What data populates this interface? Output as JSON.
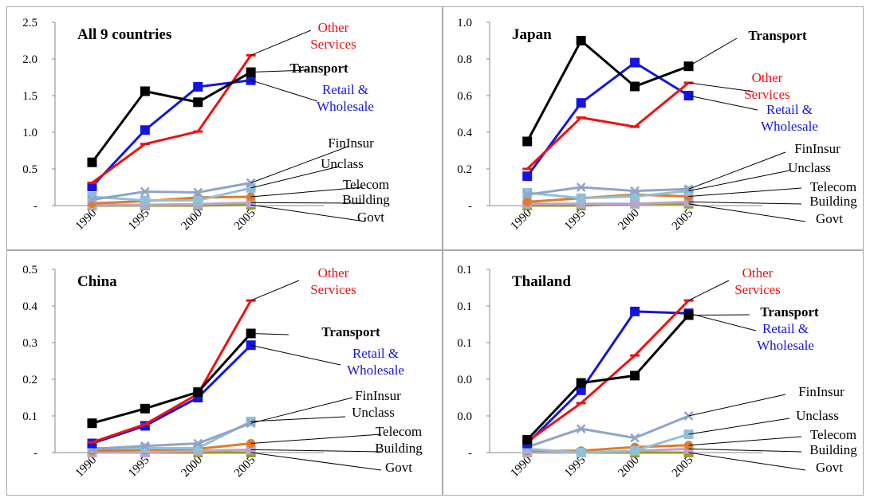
{
  "chart_data": [
    {
      "type": "line",
      "title": "All 9 countries",
      "x": [
        "1990",
        "1995",
        "2000",
        "2005"
      ],
      "yticks": [
        "-",
        "0.5",
        "1.0",
        "1.5",
        "2.0",
        "2.5"
      ],
      "ylim": [
        0,
        2.5
      ],
      "series": [
        {
          "name": "Govt",
          "color": "#9a9a28",
          "marker": "square",
          "values": [
            0.0,
            0.0,
            0.0,
            0.01
          ]
        },
        {
          "name": "Building",
          "color": "#b8a6c9",
          "marker": "square",
          "values": [
            0.01,
            0.01,
            0.02,
            0.04
          ]
        },
        {
          "name": "Telecom",
          "color": "#e07b28",
          "marker": "circle",
          "values": [
            0.03,
            0.06,
            0.11,
            0.12
          ]
        },
        {
          "name": "Unclass",
          "color": "#93bfd6",
          "marker": "square",
          "values": [
            0.12,
            0.07,
            0.07,
            0.24
          ]
        },
        {
          "name": "FinInsur",
          "color": "#8fa4c8",
          "marker": "cross",
          "values": [
            0.08,
            0.19,
            0.18,
            0.31
          ]
        },
        {
          "name": "Retail & Wholesale",
          "color": "#1515e0",
          "marker": "square",
          "values": [
            0.26,
            1.03,
            1.62,
            1.71
          ]
        },
        {
          "name": "Other Services",
          "color": "#ee1111",
          "marker": "dash",
          "values": [
            0.31,
            0.84,
            1.01,
            2.05
          ]
        },
        {
          "name": "Transport",
          "color": "#000000",
          "marker": "square",
          "values": [
            0.59,
            1.56,
            1.41,
            1.82
          ]
        }
      ]
    },
    {
      "type": "line",
      "title": "Japan",
      "x": [
        "1990",
        "1995",
        "2000",
        "2005"
      ],
      "yticks": [
        "-",
        "0.2",
        "0.4",
        "0.6",
        "0.8",
        "1.0"
      ],
      "ylim": [
        0,
        1.0
      ],
      "series": [
        {
          "name": "Govt",
          "color": "#9a9a28",
          "marker": "square",
          "values": [
            0.0,
            0.0,
            0.01,
            0.01
          ]
        },
        {
          "name": "Building",
          "color": "#b8a6c9",
          "marker": "square",
          "values": [
            0.01,
            0.01,
            0.01,
            0.02
          ]
        },
        {
          "name": "Telecom",
          "color": "#e07b28",
          "marker": "circle",
          "values": [
            0.02,
            0.04,
            0.06,
            0.05
          ]
        },
        {
          "name": "Unclass",
          "color": "#93bfd6",
          "marker": "square",
          "values": [
            0.07,
            0.04,
            0.05,
            0.08
          ]
        },
        {
          "name": "FinInsur",
          "color": "#8fa4c8",
          "marker": "cross",
          "values": [
            0.06,
            0.1,
            0.08,
            0.09
          ]
        },
        {
          "name": "Retail & Wholesale",
          "color": "#1515e0",
          "marker": "square",
          "values": [
            0.16,
            0.56,
            0.78,
            0.6
          ]
        },
        {
          "name": "Other Services",
          "color": "#ee1111",
          "marker": "dash",
          "values": [
            0.2,
            0.48,
            0.43,
            0.67
          ]
        },
        {
          "name": "Transport",
          "color": "#000000",
          "marker": "square",
          "values": [
            0.35,
            0.9,
            0.65,
            0.76
          ]
        }
      ]
    },
    {
      "type": "line",
      "title": "China",
      "x": [
        "1990",
        "1995",
        "2000",
        "2005"
      ],
      "yticks": [
        "-",
        "0.1",
        "0.2",
        "0.3",
        "0.4",
        "0.5"
      ],
      "ylim": [
        0,
        0.5
      ],
      "series": [
        {
          "name": "Govt",
          "color": "#9a9a28",
          "marker": "square",
          "values": [
            0.0,
            0.0,
            0.0,
            0.0
          ]
        },
        {
          "name": "Building",
          "color": "#b8a6c9",
          "marker": "square",
          "values": [
            0.0,
            0.0,
            0.005,
            0.008
          ]
        },
        {
          "name": "Telecom",
          "color": "#e07b28",
          "marker": "circle",
          "values": [
            0.005,
            0.007,
            0.01,
            0.025
          ]
        },
        {
          "name": "Unclass",
          "color": "#93bfd6",
          "marker": "square",
          "values": [
            0.012,
            0.012,
            0.012,
            0.085
          ]
        },
        {
          "name": "FinInsur",
          "color": "#8fa4c8",
          "marker": "cross",
          "values": [
            0.01,
            0.018,
            0.025,
            0.08
          ]
        },
        {
          "name": "Retail & Wholesale",
          "color": "#1515e0",
          "marker": "square",
          "values": [
            0.025,
            0.073,
            0.15,
            0.293
          ]
        },
        {
          "name": "Other Services",
          "color": "#ee1111",
          "marker": "dash",
          "values": [
            0.028,
            0.077,
            0.16,
            0.415
          ]
        },
        {
          "name": "Transport",
          "color": "#000000",
          "marker": "square",
          "values": [
            0.08,
            0.12,
            0.165,
            0.325
          ]
        }
      ]
    },
    {
      "type": "line",
      "title": "Thailand",
      "x": [
        "1990",
        "1995",
        "2000",
        "2005"
      ],
      "yticks": [
        "-",
        "0.0",
        "0.0",
        "0.1",
        "0.1",
        "0.1"
      ],
      "ylim": [
        0,
        0.1
      ],
      "series": [
        {
          "name": "Govt",
          "color": "#9a9a28",
          "marker": "square",
          "values": [
            0.0,
            0.0,
            0.0,
            0.0
          ]
        },
        {
          "name": "Building",
          "color": "#b8a6c9",
          "marker": "square",
          "values": [
            0.0,
            0.0,
            0.001,
            0.002
          ]
        },
        {
          "name": "Telecom",
          "color": "#e07b28",
          "marker": "circle",
          "values": [
            0.001,
            0.001,
            0.003,
            0.004
          ]
        },
        {
          "name": "Unclass",
          "color": "#93bfd6",
          "marker": "square",
          "values": [
            0.002,
            0.0,
            0.001,
            0.01
          ]
        },
        {
          "name": "FinInsur",
          "color": "#8fa4c8",
          "marker": "cross",
          "values": [
            0.003,
            0.013,
            0.008,
            0.02
          ]
        },
        {
          "name": "Retail & Wholesale",
          "color": "#1515e0",
          "marker": "square",
          "values": [
            0.005,
            0.034,
            0.077,
            0.076
          ]
        },
        {
          "name": "Other Services",
          "color": "#ee1111",
          "marker": "dash",
          "values": [
            0.006,
            0.027,
            0.053,
            0.083
          ]
        },
        {
          "name": "Transport",
          "color": "#000000",
          "marker": "square",
          "values": [
            0.007,
            0.038,
            0.042,
            0.075
          ]
        }
      ]
    }
  ],
  "labels": {
    "other_services_line1": "Other",
    "other_services_line2": "Services",
    "transport": "Transport",
    "retail_line1": "Retail &",
    "retail_line2": "Wholesale",
    "fininsur": "FinInsur",
    "unclass": "Unclass",
    "telecom": "Telecom",
    "building": "Building",
    "govt": "Govt"
  }
}
